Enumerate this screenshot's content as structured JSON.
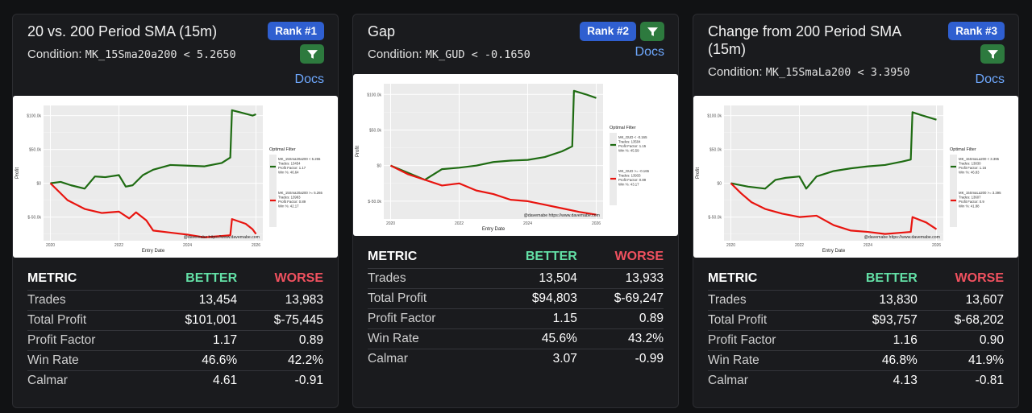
{
  "columns": {
    "metric": "METRIC",
    "better": "BETTER",
    "worse": "WORSE"
  },
  "docs_label": "Docs",
  "condition_label": "Condition:",
  "cards": [
    {
      "title": "20 vs. 200 Period SMA (15m)",
      "rank": "Rank #1",
      "condition": "MK_15Sma20a200 < 5.2650",
      "rows": [
        [
          "Trades",
          "13,454",
          "13,983"
        ],
        [
          "Total Profit",
          "$101,001",
          "$-75,445"
        ],
        [
          "Profit Factor",
          "1.17",
          "0.89"
        ],
        [
          "Win Rate",
          "46.6%",
          "42.2%"
        ],
        [
          "Calmar",
          "4.61",
          "-0.91"
        ]
      ]
    },
    {
      "title": "Gap",
      "rank": "Rank #2",
      "condition": "MK_GUD < -0.1650",
      "rows": [
        [
          "Trades",
          "13,504",
          "13,933"
        ],
        [
          "Total Profit",
          "$94,803",
          "$-69,247"
        ],
        [
          "Profit Factor",
          "1.15",
          "0.89"
        ],
        [
          "Win Rate",
          "45.6%",
          "43.2%"
        ],
        [
          "Calmar",
          "3.07",
          "-0.99"
        ]
      ]
    },
    {
      "title": "Change from 200 Period SMA (15m)",
      "rank": "Rank #3",
      "condition": "MK_15SmaLa200 < 3.3950",
      "rows": [
        [
          "Trades",
          "13,830",
          "13,607"
        ],
        [
          "Total Profit",
          "$93,757",
          "$-68,202"
        ],
        [
          "Profit Factor",
          "1.16",
          "0.90"
        ],
        [
          "Win Rate",
          "46.8%",
          "41.9%"
        ],
        [
          "Calmar",
          "4.13",
          "-0.81"
        ]
      ]
    }
  ],
  "chart_data": [
    {
      "type": "line",
      "xlabel": "Entry Date",
      "ylabel": "Profit",
      "legend_title": "Optimal Filter",
      "watermark": "@davemabe https://www.davemabe.com",
      "x_ticks": [
        "2020",
        "2022",
        "2024",
        "2026"
      ],
      "y_ticks": [
        "$100.0k",
        "$50.0k",
        "$0",
        "$-50.0k"
      ],
      "ylim": [
        -85,
        115
      ],
      "xlim": [
        2019.8,
        2026.2
      ],
      "series": [
        {
          "name": "MK_15Sma20a200 < 5.265",
          "stats": [
            "Trades: 13454",
            "Profit Factor: 1.17",
            "Win %: 46.64"
          ],
          "color": "#1e6b12",
          "x": [
            2020,
            2020.3,
            2020.6,
            2021,
            2021.3,
            2021.6,
            2022,
            2022.2,
            2022.4,
            2022.7,
            2023,
            2023.5,
            2024,
            2024.5,
            2025,
            2025.25,
            2025.3,
            2025.6,
            2025.9,
            2026
          ],
          "y": [
            0,
            2,
            -3,
            -8,
            10,
            9,
            12,
            -5,
            -3,
            12,
            20,
            27,
            26,
            25,
            30,
            38,
            108,
            104,
            100,
            102
          ]
        },
        {
          "name": "MK_15Sma20a200 >= 5.265",
          "stats": [
            "Trades: 13983",
            "Profit Factor: 0.89",
            "Win %: 42.17"
          ],
          "color": "#e8140f",
          "x": [
            2020,
            2020.2,
            2020.5,
            2021,
            2021.5,
            2022,
            2022.3,
            2022.5,
            2022.8,
            2023,
            2023.5,
            2024,
            2024.5,
            2025,
            2025.25,
            2025.3,
            2025.7,
            2025.9,
            2026
          ],
          "y": [
            0,
            -10,
            -25,
            -38,
            -44,
            -42,
            -52,
            -43,
            -55,
            -70,
            -73,
            -76,
            -80,
            -78,
            -77,
            -53,
            -60,
            -68,
            -75
          ]
        }
      ]
    },
    {
      "type": "line",
      "xlabel": "Entry Date",
      "ylabel": "Profit",
      "legend_title": "Optimal Filter",
      "watermark": "@davemabe https://www.davemabe.com",
      "x_ticks": [
        "2020",
        "2022",
        "2024",
        "2026"
      ],
      "y_ticks": [
        "$100.0k",
        "$50.0k",
        "$0",
        "$-50.0k"
      ],
      "ylim": [
        -75,
        115
      ],
      "xlim": [
        2019.8,
        2026.2
      ],
      "series": [
        {
          "name": "MK_GUD < -0.165",
          "stats": [
            "Trades: 13504",
            "Profit Factor: 1.15",
            "Win %: 45.59"
          ],
          "color": "#1e6b12",
          "x": [
            2020,
            2020.5,
            2021,
            2021.5,
            2022,
            2022.5,
            2023,
            2023.5,
            2024,
            2024.5,
            2025,
            2025.3,
            2025.35,
            2025.7,
            2026
          ],
          "y": [
            0,
            -10,
            -20,
            -5,
            -3,
            0,
            5,
            7,
            8,
            12,
            20,
            27,
            105,
            100,
            95
          ]
        },
        {
          "name": "MK_GUD >= -0.165",
          "stats": [
            "Trades: 13933",
            "Profit Factor: 0.89",
            "Win %: 43.17"
          ],
          "color": "#e8140f",
          "x": [
            2020,
            2020.5,
            2021,
            2021.5,
            2022,
            2022.5,
            2023,
            2023.5,
            2024,
            2024.5,
            2025,
            2025.5,
            2026
          ],
          "y": [
            0,
            -12,
            -20,
            -28,
            -25,
            -35,
            -40,
            -48,
            -50,
            -55,
            -60,
            -65,
            -69
          ]
        }
      ]
    },
    {
      "type": "line",
      "xlabel": "Entry Date",
      "ylabel": "Profit",
      "legend_title": "Optimal Filter",
      "watermark": "@davemabe https://www.davemabe.com",
      "x_ticks": [
        "2020",
        "2022",
        "2024",
        "2026"
      ],
      "y_ticks": [
        "$100.0k",
        "$50.0k",
        "$0",
        "$-50.0k"
      ],
      "ylim": [
        -85,
        115
      ],
      "xlim": [
        2019.8,
        2026.2
      ],
      "series": [
        {
          "name": "MK_15SmaLa200 < 3.395",
          "stats": [
            "Trades: 13830",
            "Profit Factor: 1.16",
            "Win %: 46.83"
          ],
          "color": "#1e6b12",
          "x": [
            2020,
            2020.5,
            2021,
            2021.3,
            2021.6,
            2022,
            2022.2,
            2022.5,
            2023,
            2023.5,
            2024,
            2024.5,
            2025,
            2025.25,
            2025.3,
            2025.6,
            2026
          ],
          "y": [
            0,
            -5,
            -8,
            5,
            8,
            10,
            -8,
            10,
            18,
            22,
            25,
            27,
            32,
            35,
            105,
            100,
            94
          ]
        },
        {
          "name": "MK_15SmaLa200 >= 3.395",
          "stats": [
            "Trades: 13607",
            "Profit Factor: 0.9",
            "Win %: 41.88"
          ],
          "color": "#e8140f",
          "x": [
            2020,
            2020.3,
            2020.6,
            2021,
            2021.5,
            2022,
            2022.5,
            2023,
            2023.5,
            2024,
            2024.5,
            2025,
            2025.25,
            2025.3,
            2025.7,
            2026
          ],
          "y": [
            0,
            -15,
            -28,
            -38,
            -45,
            -50,
            -48,
            -62,
            -70,
            -72,
            -75,
            -73,
            -72,
            -50,
            -58,
            -68
          ]
        }
      ]
    }
  ]
}
